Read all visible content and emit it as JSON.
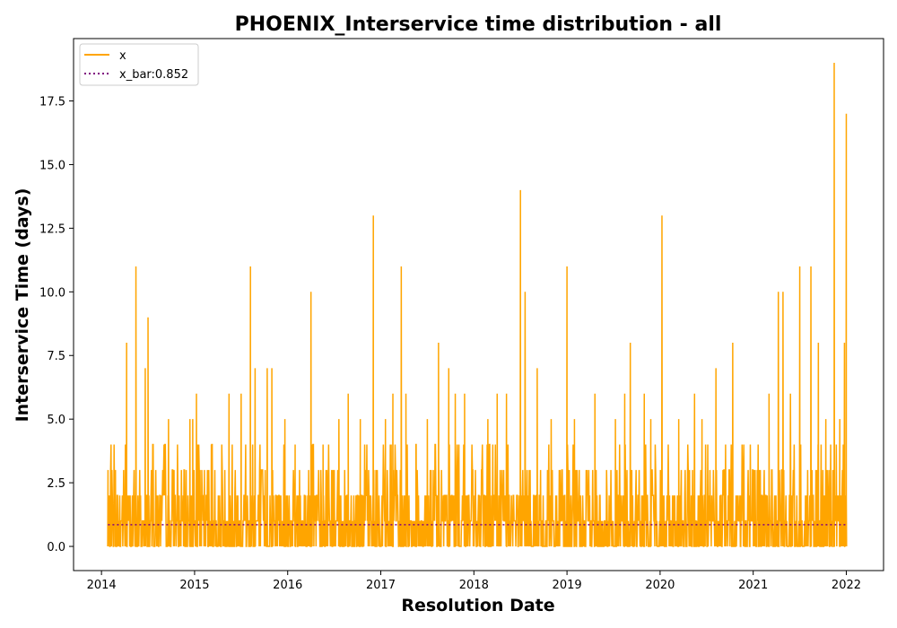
{
  "chart_data": {
    "type": "line",
    "title": "PHOENIX_Interservice time distribution - all",
    "xlabel": "Resolution Date",
    "ylabel": "Interservice Time (days)",
    "xlim": [
      2013.7,
      2022.4
    ],
    "ylim": [
      -0.95,
      19.95
    ],
    "x_ticks": [
      "2014",
      "2015",
      "2016",
      "2017",
      "2018",
      "2019",
      "2020",
      "2021",
      "2022"
    ],
    "y_ticks": [
      "0.0",
      "2.5",
      "5.0",
      "7.5",
      "10.0",
      "12.5",
      "15.0",
      "17.5"
    ],
    "grid": false,
    "legend": "top-left",
    "colors": {
      "x": "#ffa500",
      "x_bar": "#800080"
    },
    "series": [
      {
        "name": "x",
        "style": "solid",
        "peaks": [
          {
            "x": 2014.07,
            "y": 3
          },
          {
            "x": 2014.15,
            "y": 3
          },
          {
            "x": 2014.27,
            "y": 8
          },
          {
            "x": 2014.37,
            "y": 11
          },
          {
            "x": 2014.47,
            "y": 7
          },
          {
            "x": 2014.5,
            "y": 9
          },
          {
            "x": 2014.72,
            "y": 5
          },
          {
            "x": 2014.95,
            "y": 5
          },
          {
            "x": 2014.98,
            "y": 5
          },
          {
            "x": 2015.02,
            "y": 6
          },
          {
            "x": 2015.18,
            "y": 4
          },
          {
            "x": 2015.37,
            "y": 6
          },
          {
            "x": 2015.5,
            "y": 6
          },
          {
            "x": 2015.6,
            "y": 11
          },
          {
            "x": 2015.65,
            "y": 7
          },
          {
            "x": 2015.78,
            "y": 7
          },
          {
            "x": 2015.83,
            "y": 7
          },
          {
            "x": 2015.97,
            "y": 5
          },
          {
            "x": 2016.08,
            "y": 4
          },
          {
            "x": 2016.25,
            "y": 10
          },
          {
            "x": 2016.38,
            "y": 4
          },
          {
            "x": 2016.55,
            "y": 5
          },
          {
            "x": 2016.65,
            "y": 6
          },
          {
            "x": 2016.78,
            "y": 5
          },
          {
            "x": 2016.92,
            "y": 13
          },
          {
            "x": 2017.05,
            "y": 5
          },
          {
            "x": 2017.13,
            "y": 6
          },
          {
            "x": 2017.22,
            "y": 11
          },
          {
            "x": 2017.27,
            "y": 6
          },
          {
            "x": 2017.38,
            "y": 4
          },
          {
            "x": 2017.5,
            "y": 5
          },
          {
            "x": 2017.62,
            "y": 8
          },
          {
            "x": 2017.73,
            "y": 7
          },
          {
            "x": 2017.8,
            "y": 6
          },
          {
            "x": 2017.9,
            "y": 6
          },
          {
            "x": 2018.15,
            "y": 5
          },
          {
            "x": 2018.25,
            "y": 6
          },
          {
            "x": 2018.35,
            "y": 6
          },
          {
            "x": 2018.5,
            "y": 14
          },
          {
            "x": 2018.55,
            "y": 10
          },
          {
            "x": 2018.68,
            "y": 7
          },
          {
            "x": 2018.83,
            "y": 5
          },
          {
            "x": 2019.0,
            "y": 11
          },
          {
            "x": 2019.08,
            "y": 5
          },
          {
            "x": 2019.3,
            "y": 6
          },
          {
            "x": 2019.52,
            "y": 5
          },
          {
            "x": 2019.62,
            "y": 6
          },
          {
            "x": 2019.68,
            "y": 8
          },
          {
            "x": 2019.83,
            "y": 6
          },
          {
            "x": 2019.9,
            "y": 5
          },
          {
            "x": 2020.02,
            "y": 13
          },
          {
            "x": 2020.2,
            "y": 5
          },
          {
            "x": 2020.37,
            "y": 6
          },
          {
            "x": 2020.45,
            "y": 5
          },
          {
            "x": 2020.6,
            "y": 7
          },
          {
            "x": 2020.78,
            "y": 8
          },
          {
            "x": 2021.17,
            "y": 6
          },
          {
            "x": 2021.27,
            "y": 10
          },
          {
            "x": 2021.32,
            "y": 10
          },
          {
            "x": 2021.4,
            "y": 6
          },
          {
            "x": 2021.5,
            "y": 11
          },
          {
            "x": 2021.62,
            "y": 11
          },
          {
            "x": 2021.7,
            "y": 8
          },
          {
            "x": 2021.78,
            "y": 5
          },
          {
            "x": 2021.87,
            "y": 19
          },
          {
            "x": 2021.93,
            "y": 5
          },
          {
            "x": 2021.98,
            "y": 8
          },
          {
            "x": 2022.0,
            "y": 17
          }
        ]
      },
      {
        "name": "x_bar:0.852",
        "style": "dotted",
        "x": [
          2014.07,
          2022.0
        ],
        "y": [
          0.852,
          0.852
        ]
      }
    ]
  }
}
